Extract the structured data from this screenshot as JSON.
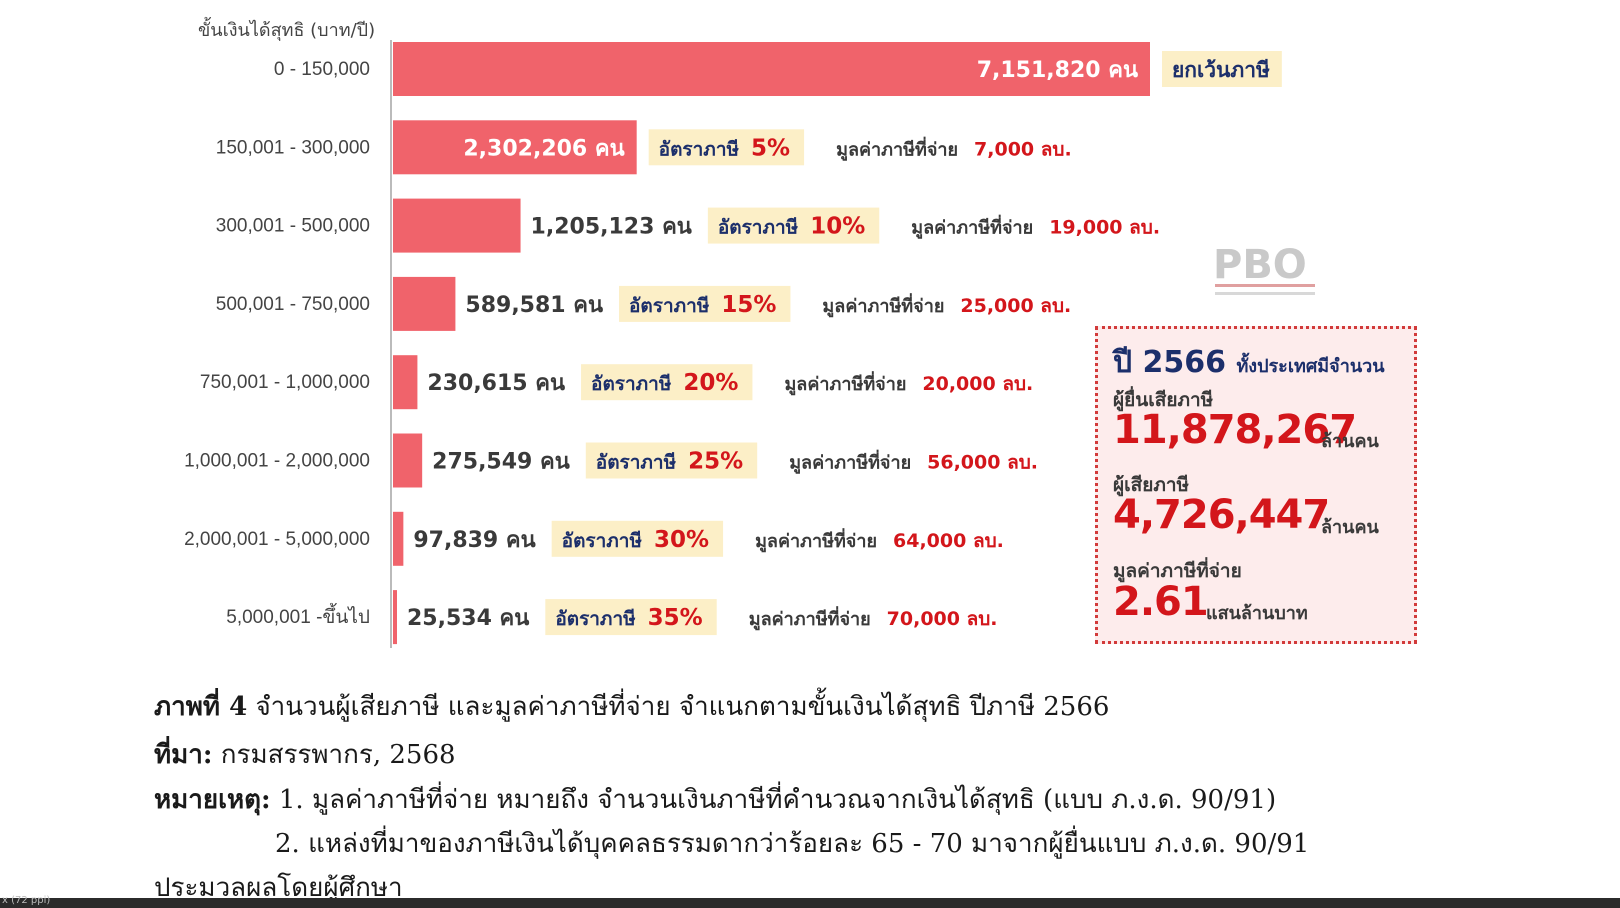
{
  "chart_data": {
    "type": "bar",
    "orientation": "horizontal",
    "ylabel": "ขั้นเงินได้สุทธิ (บาท/ปี)",
    "categories": [
      "0 - 150,000",
      "150,001 - 300,000",
      "300,001 - 500,000",
      "500,001 - 750,000",
      "750,001 - 1,000,000",
      "1,000,001 - 2,000,000",
      "2,000,001 - 5,000,000",
      "5,000,001 -ขึ้นไป"
    ],
    "values": [
      7151820,
      2302206,
      1205123,
      589581,
      230615,
      275549,
      97839,
      25534
    ],
    "count_labels": [
      "7,151,820 คน",
      "2,302,206 คน",
      "1,205,123 คน",
      "589,581 คน",
      "230,615 คน",
      "275,549 คน",
      "97,839 คน",
      "25,534 คน"
    ],
    "rate_label": "อัตราภาษี",
    "rates": [
      "",
      "5%",
      "10%",
      "15%",
      "20%",
      "25%",
      "30%",
      "35%"
    ],
    "tax_label": "มูลค่าภาษีที่จ่าย",
    "tax_paid": [
      "",
      "7,000 ลบ.",
      "19,000 ลบ.",
      "25,000 ลบ.",
      "20,000 ลบ.",
      "56,000 ลบ.",
      "64,000 ลบ.",
      "70,000 ลบ."
    ],
    "exempt_label": "ยกเว้นภาษี",
    "bar_color": "#f0636b",
    "highlight_color": "#fcefc7",
    "grid": false
  },
  "summary": {
    "year_title": "ปี 2566",
    "year_suffix": "ทั้งประเทศมีจำนวน",
    "filers_label": "ผู้ยื่นเสียภาษี",
    "filers_value": "11,878,267",
    "filers_unit": "ล้านคน",
    "payers_label": "ผู้เสียภาษี",
    "payers_value": "4,726,447",
    "payers_unit": "ล้านคน",
    "tax_label": "มูลค่าภาษีที่จ่าย",
    "tax_value": "2.61",
    "tax_unit": "แสนล้านบาท"
  },
  "caption": {
    "figure_label": "ภาพที่ 4",
    "figure_text": "จำนวนผู้เสียภาษี และมูลค่าภาษีที่จ่าย จำแนกตามขั้นเงินได้สุทธิ ปีภาษี 2566",
    "source_label": "ที่มา:",
    "source_text": "กรมสรรพากร, 2568",
    "note_label": "หมายเหตุ:",
    "note1": "1. มูลค่าภาษีที่จ่าย หมายถึง จำนวนเงินภาษีที่คำนวณจากเงินได้สุทธิ (แบบ ภ.ง.ด. 90/91)",
    "note2": "2. แหล่งที่มาของภาษีเงินได้บุคคลธรรมดากว่าร้อยละ 65 - 70 มาจากผู้ยื่นแบบ ภ.ง.ด. 90/91",
    "processed": "ประมวลผลโดยผู้ศึกษา"
  },
  "logo_text": "PBO",
  "status_text": "x (72 ppi)"
}
